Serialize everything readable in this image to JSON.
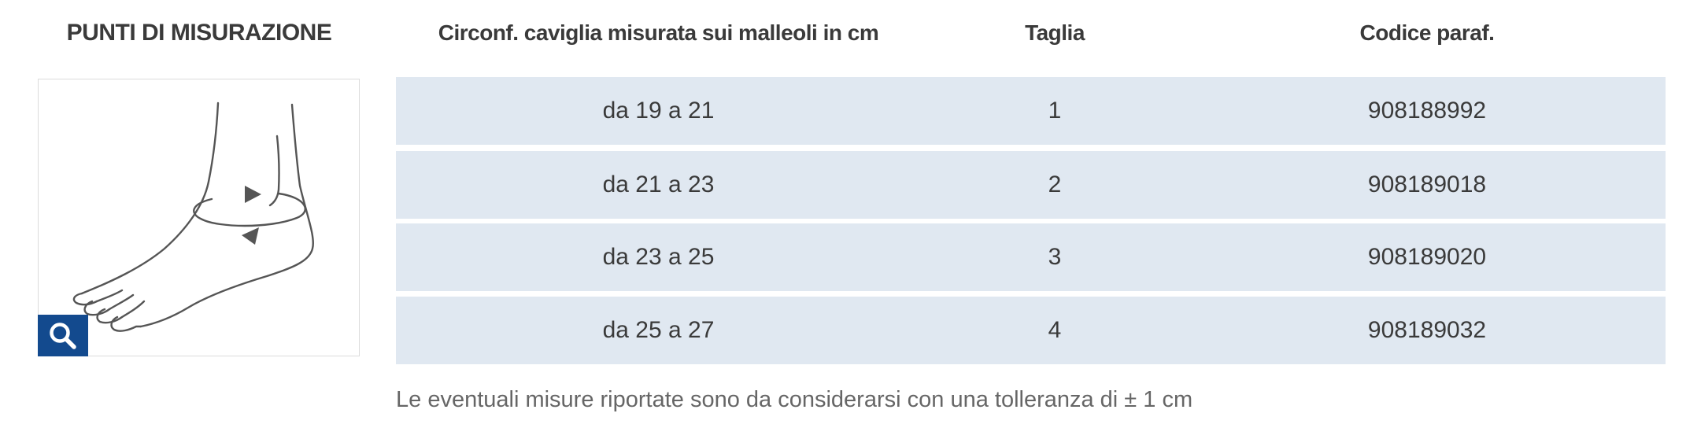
{
  "left_title": "PUNTI DI MISURAZIONE",
  "zoom_icon": "search-icon",
  "foot_icon": "foot-ankle-measurement-illustration",
  "colors": {
    "row_background": "#e0e8f1",
    "zoom_button": "#134a8e",
    "text": "#3a3a3a",
    "note_text": "#666666"
  },
  "table": {
    "headers": [
      "Circonf. caviglia misurata sui malleoli in cm",
      "Taglia",
      "Codice paraf."
    ],
    "rows": [
      [
        "da 19 a 21",
        "1",
        "908188992"
      ],
      [
        "da 21 a 23",
        "2",
        "908189018"
      ],
      [
        "da 23 a 25",
        "3",
        "908189020"
      ],
      [
        "da 25 a 27",
        "4",
        "908189032"
      ]
    ]
  },
  "note": "Le eventuali misure riportate sono da considerarsi con una tolleranza di ± 1 cm"
}
